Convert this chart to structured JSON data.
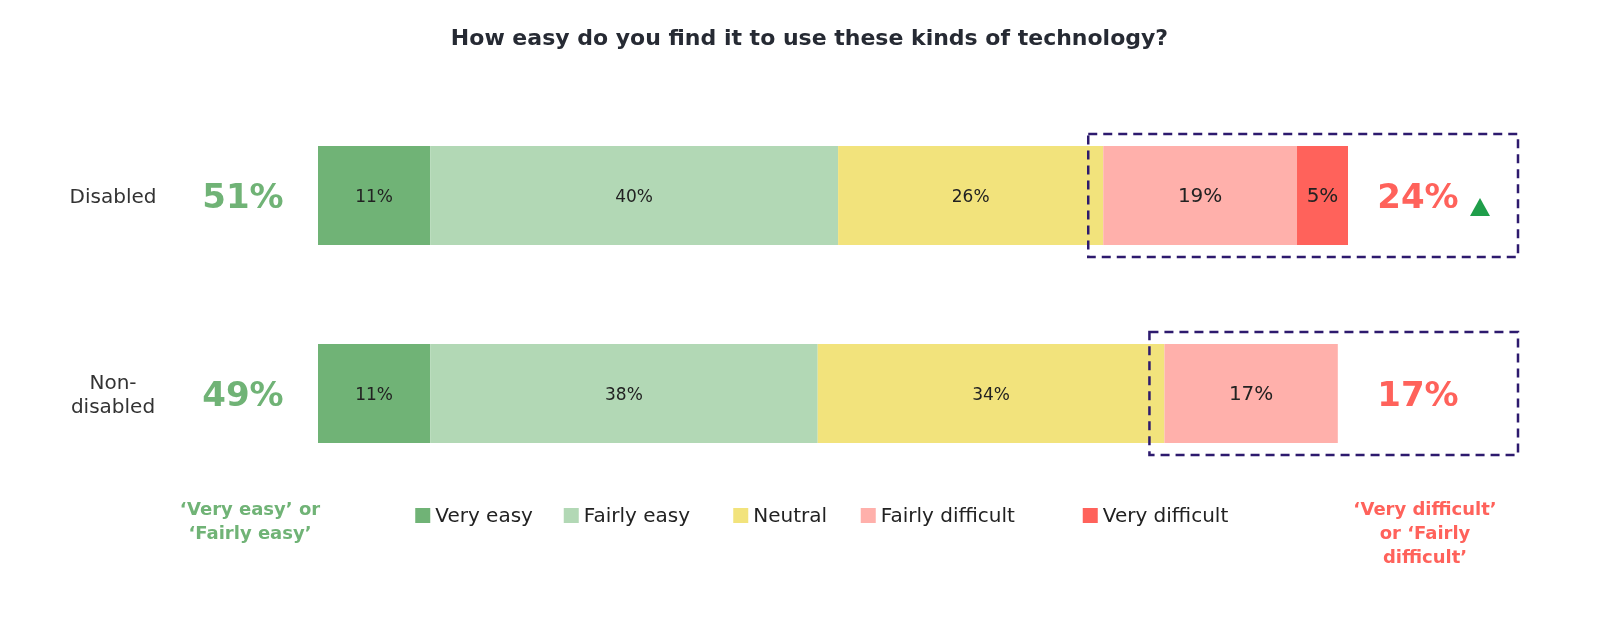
{
  "chart_data": {
    "type": "bar",
    "orientation": "horizontal",
    "stacked": true,
    "title": "How easy do you find it to use these kinds of technology?",
    "categories": [
      "Disabled",
      "Non-disabled"
    ],
    "series": [
      {
        "name": "Very easy",
        "color": "#70b376",
        "values": [
          11,
          11
        ],
        "value_labels": [
          "11%",
          "11%"
        ]
      },
      {
        "name": "Fairly easy",
        "color": "#b2d8b5",
        "values": [
          40,
          38
        ],
        "value_labels": [
          "40%",
          "38%"
        ]
      },
      {
        "name": "Neutral",
        "color": "#f2e37c",
        "values": [
          26,
          34
        ],
        "value_labels": [
          "26%",
          "34%"
        ]
      },
      {
        "name": "Fairly difficult",
        "color": "#ffb0ab",
        "values": [
          19,
          17
        ],
        "value_labels": [
          "19%",
          "17%"
        ]
      },
      {
        "name": "Very difficult",
        "color": "#ff625b",
        "values": [
          5,
          null
        ],
        "value_labels": [
          "5%",
          null
        ]
      }
    ],
    "annotations": [
      "51%",
      "49%",
      "24%",
      "17%",
      "‘Very easy’ or ‘Fairly easy’",
      "‘Very difficult’ or ‘Fairly difficult’"
    ],
    "legend": "bottom",
    "tick_labels": "y"
  }
}
